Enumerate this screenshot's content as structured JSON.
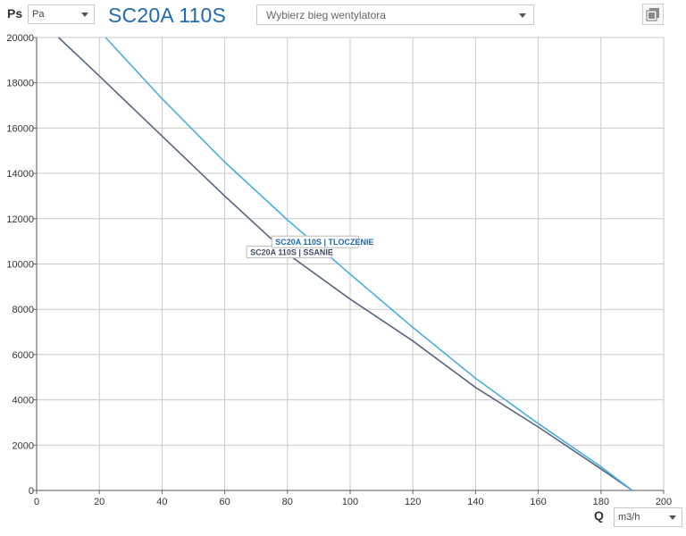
{
  "header": {
    "ps_label": "Ps",
    "unit_select": {
      "value": "Pa"
    },
    "title": "SC20A 110S",
    "speed_select": {
      "placeholder": "Wybierz bieg wentylatora"
    },
    "copy_icon": "copy-icon"
  },
  "footer": {
    "q_label": "Q",
    "q_unit_select": {
      "value": "m3/h"
    }
  },
  "colors": {
    "series_ssanie": "#56657f",
    "series_tloczenie": "#4aaee0",
    "grid": "#c9c9c9",
    "title": "#1f6ab4"
  },
  "chart_data": {
    "type": "line",
    "title": "",
    "xlabel": "Q",
    "ylabel": "Ps",
    "xlim": [
      0,
      200
    ],
    "ylim": [
      0,
      20000
    ],
    "xticks": [
      0,
      20,
      40,
      60,
      80,
      100,
      120,
      140,
      160,
      180,
      200
    ],
    "yticks": [
      0,
      2000,
      4000,
      6000,
      8000,
      10000,
      12000,
      14000,
      16000,
      18000,
      20000
    ],
    "grid": true,
    "series": [
      {
        "name": "SC20A 110S | SSANIE",
        "color": "#56657f",
        "points": [
          [
            7,
            20000
          ],
          [
            20,
            18300
          ],
          [
            40,
            15650
          ],
          [
            60,
            13000
          ],
          [
            80,
            10450
          ],
          [
            100,
            8450
          ],
          [
            120,
            6600
          ],
          [
            140,
            4550
          ],
          [
            160,
            2800
          ],
          [
            180,
            950
          ],
          [
            190,
            0
          ]
        ]
      },
      {
        "name": "SC20A 110S | TLOCZENIE",
        "color": "#4aaee0",
        "points": [
          [
            22,
            20000
          ],
          [
            40,
            17300
          ],
          [
            60,
            14500
          ],
          [
            80,
            11950
          ],
          [
            100,
            9550
          ],
          [
            120,
            7200
          ],
          [
            140,
            4950
          ],
          [
            160,
            2950
          ],
          [
            180,
            1050
          ],
          [
            190,
            0
          ]
        ]
      }
    ]
  }
}
